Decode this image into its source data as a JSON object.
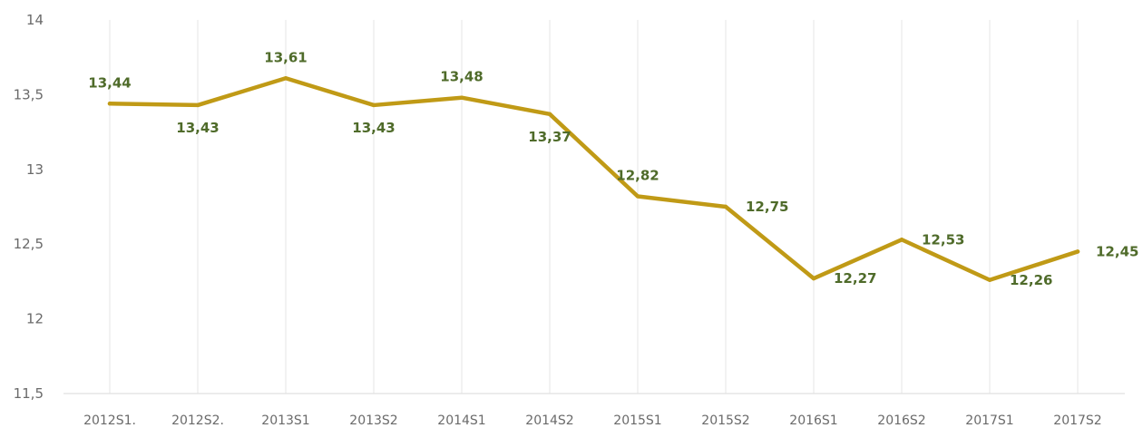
{
  "chart_data": {
    "type": "line",
    "categories": [
      "2012S1.",
      "2012S2.",
      "2013S1",
      "2013S2",
      "2014S1",
      "2014S2",
      "2015S1",
      "2015S2",
      "2016S1",
      "2016S2",
      "2017S1",
      "2017S2"
    ],
    "series": [
      {
        "values": [
          13.44,
          13.43,
          13.61,
          13.43,
          13.48,
          13.37,
          12.82,
          12.75,
          12.27,
          12.53,
          12.26,
          12.45
        ],
        "labels": [
          "13,44",
          "13,43",
          "13,61",
          "13,43",
          "13,48",
          "13,37",
          "12,82",
          "12,75",
          "12,27",
          "12,53",
          "12,26",
          "12,45"
        ],
        "label_position": [
          "above",
          "below",
          "above",
          "below",
          "above",
          "below",
          "above",
          "right",
          "right",
          "right",
          "right",
          "right"
        ]
      }
    ],
    "yticks": [
      "14",
      "13,5",
      "13",
      "12,5",
      "12",
      "11,5"
    ],
    "ytick_values": [
      14,
      13.5,
      13,
      12.5,
      12,
      11.5
    ],
    "ylim": [
      11.5,
      14
    ],
    "grid": "vertical",
    "legend": "none",
    "colors": {
      "line": "#c09a16",
      "label": "#4f6b2a",
      "tick": "#6a6a6a",
      "grid": "#e6e6e6"
    }
  }
}
